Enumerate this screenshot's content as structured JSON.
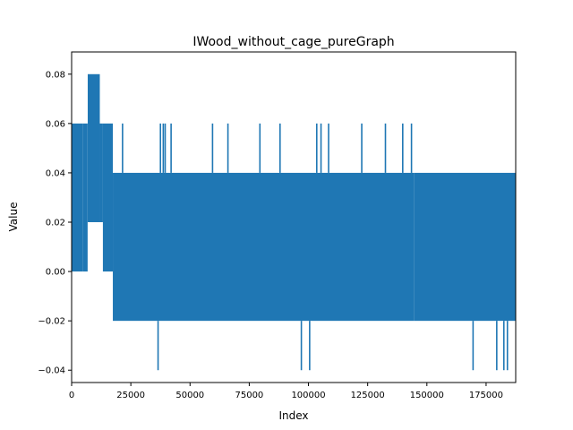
{
  "chart_data": {
    "type": "line",
    "title": "IWood_without_cage_pureGraph",
    "xlabel": "Index",
    "ylabel": "Value",
    "xlim": [
      0,
      187500
    ],
    "ylim": [
      -0.045,
      0.089
    ],
    "xticks": [
      0,
      25000,
      50000,
      75000,
      100000,
      125000,
      150000,
      175000
    ],
    "xtick_labels": [
      "0",
      "25000",
      "50000",
      "75000",
      "100000",
      "125000",
      "150000",
      "175000"
    ],
    "yticks": [
      -0.04,
      -0.02,
      0.0,
      0.02,
      0.04,
      0.06,
      0.08
    ],
    "ytick_labels": [
      "−0.04",
      "−0.02",
      "0.00",
      "0.02",
      "0.04",
      "0.06",
      "0.08"
    ],
    "grid": false,
    "legend": "none",
    "color": "#1f77b4",
    "series": [
      {
        "segments": [
          {
            "x_start": 0,
            "x_end": 4800,
            "y_min": 0.0,
            "y_max": 0.06
          },
          {
            "x_start": 4800,
            "x_end": 6500,
            "y_min": 0.0,
            "y_max": 0.06
          },
          {
            "x_start": 6500,
            "x_end": 6800,
            "y_min": 0.0,
            "y_max": 0.06
          },
          {
            "x_start": 6800,
            "x_end": 11900,
            "y_min": 0.02,
            "y_max": 0.08
          },
          {
            "x_start": 11900,
            "x_end": 13200,
            "y_min": 0.02,
            "y_max": 0.06
          },
          {
            "x_start": 13200,
            "x_end": 17400,
            "y_min": 0.0,
            "y_max": 0.06
          },
          {
            "x_start": 17400,
            "x_end": 144500,
            "y_min": -0.02,
            "y_max": 0.04
          },
          {
            "x_start": 144500,
            "x_end": 187500,
            "y_min": -0.02,
            "y_max": 0.04
          }
        ],
        "spikes_up": [
          {
            "x": 21500,
            "y": 0.06
          },
          {
            "x": 37500,
            "y": 0.06
          },
          {
            "x": 38700,
            "y": 0.06
          },
          {
            "x": 39500,
            "y": 0.06
          },
          {
            "x": 42000,
            "y": 0.06
          },
          {
            "x": 59500,
            "y": 0.06
          },
          {
            "x": 66000,
            "y": 0.06
          },
          {
            "x": 79500,
            "y": 0.06
          },
          {
            "x": 88000,
            "y": 0.06
          },
          {
            "x": 103500,
            "y": 0.06
          },
          {
            "x": 105300,
            "y": 0.06
          },
          {
            "x": 108500,
            "y": 0.06
          },
          {
            "x": 122500,
            "y": 0.06
          },
          {
            "x": 132500,
            "y": 0.06
          },
          {
            "x": 139800,
            "y": 0.06
          },
          {
            "x": 143500,
            "y": 0.06
          }
        ],
        "spikes_down": [
          {
            "x": 36500,
            "y": -0.04
          },
          {
            "x": 97000,
            "y": -0.04
          },
          {
            "x": 100500,
            "y": -0.04
          },
          {
            "x": 169500,
            "y": -0.04
          },
          {
            "x": 179500,
            "y": -0.04
          },
          {
            "x": 182500,
            "y": -0.04
          },
          {
            "x": 184000,
            "y": -0.04
          }
        ]
      }
    ]
  }
}
